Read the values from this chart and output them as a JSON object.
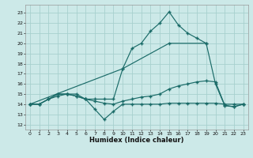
{
  "xlabel": "Humidex (Indice chaleur)",
  "background_color": "#cce9e8",
  "grid_color": "#a8d0ce",
  "line_color": "#1a6b68",
  "xlim": [
    -0.5,
    23.5
  ],
  "ylim": [
    11.5,
    23.8
  ],
  "ytick_vals": [
    12,
    13,
    14,
    15,
    16,
    17,
    18,
    19,
    20,
    21,
    22,
    23
  ],
  "xtick_vals": [
    0,
    1,
    2,
    3,
    4,
    5,
    6,
    7,
    8,
    9,
    10,
    11,
    12,
    13,
    14,
    15,
    16,
    17,
    18,
    19,
    20,
    21,
    22,
    23
  ],
  "lines": [
    {
      "x": [
        0,
        1,
        2,
        3,
        4,
        5,
        6,
        7,
        8,
        9,
        10,
        11,
        12,
        13,
        14,
        15,
        16,
        17,
        18,
        19,
        20,
        21,
        22,
        23
      ],
      "y": [
        14.0,
        14.0,
        14.5,
        15.0,
        15.0,
        15.0,
        14.5,
        14.5,
        14.5,
        14.5,
        17.5,
        19.5,
        20.0,
        21.2,
        22.0,
        23.1,
        21.8,
        21.0,
        20.5,
        20.0,
        16.0,
        13.85,
        13.75,
        14.0
      ]
    },
    {
      "x": [
        0,
        10,
        15,
        19
      ],
      "y": [
        14.0,
        17.5,
        20.0,
        20.0
      ]
    },
    {
      "x": [
        0,
        1,
        2,
        3,
        4,
        5,
        6,
        7,
        8,
        9,
        10,
        11,
        12,
        13,
        14,
        15,
        16,
        17,
        18,
        19,
        20,
        21,
        22,
        23
      ],
      "y": [
        14.0,
        14.0,
        14.5,
        14.8,
        15.0,
        14.8,
        14.5,
        14.3,
        14.1,
        14.0,
        14.3,
        14.5,
        14.7,
        14.8,
        15.0,
        15.5,
        15.8,
        16.0,
        16.2,
        16.3,
        16.2,
        13.9,
        13.75,
        14.0
      ]
    },
    {
      "x": [
        0,
        1,
        2,
        3,
        4,
        5,
        6,
        7,
        8,
        9,
        10,
        11,
        12,
        13,
        14,
        15,
        16,
        17,
        18,
        19,
        20,
        21,
        22,
        23
      ],
      "y": [
        14.0,
        14.0,
        14.5,
        15.0,
        15.0,
        14.8,
        14.5,
        13.5,
        12.5,
        13.3,
        14.0,
        14.0,
        14.0,
        14.0,
        14.0,
        14.1,
        14.1,
        14.1,
        14.1,
        14.1,
        14.1,
        14.0,
        14.0,
        14.0
      ]
    }
  ]
}
